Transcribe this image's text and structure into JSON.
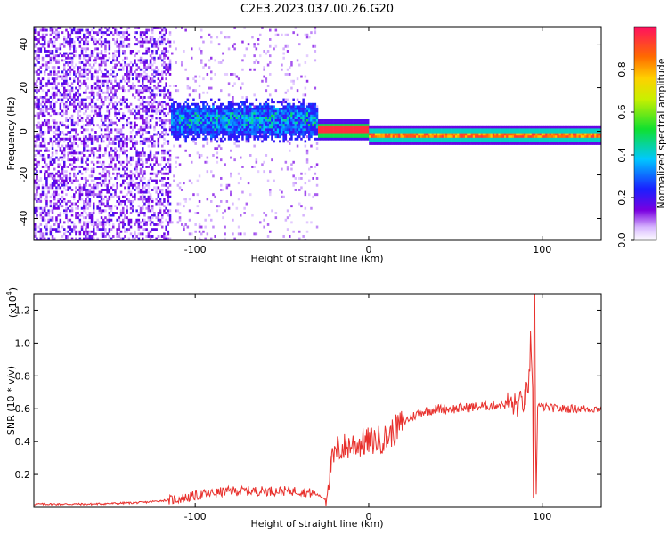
{
  "title": "C2E3.2023.037.00.26.G20",
  "colorbar": {
    "label": "Normalized spectral amplitude",
    "ticks": [
      "0.0",
      "0.2",
      "0.4",
      "0.6",
      "0.8"
    ],
    "range": [
      0,
      1
    ]
  },
  "chart_data": [
    {
      "type": "heatmap",
      "xlabel": "Height of straight line (km)",
      "ylabel": "Frequency (Hz)",
      "xlim": [
        -193,
        134
      ],
      "ylim": [
        -50,
        48
      ],
      "xticks": [
        "-100",
        "0",
        "100"
      ],
      "yticks": [
        "40",
        "20",
        "0",
        "-20",
        "-40"
      ],
      "description_bands": [
        {
          "x_start": -193,
          "x_end": -115,
          "kind": "broadband noise",
          "amplitude_range": [
            0.0,
            0.2
          ]
        },
        {
          "x_start": -115,
          "x_end": -30,
          "kind": "scattered signal near 0 Hz",
          "center_freq": [
            3,
            8
          ],
          "amplitude_range": [
            0.15,
            0.5
          ]
        },
        {
          "x_start": -30,
          "x_end": 0,
          "kind": "strong narrow line",
          "center_freq": [
            0,
            2
          ],
          "amplitude_range": [
            0.8,
            1.0
          ]
        },
        {
          "x_start": 0,
          "x_end": 134,
          "kind": "narrow line",
          "center_freq": [
            -2,
            0
          ],
          "amplitude_range": [
            0.35,
            0.9
          ]
        }
      ]
    },
    {
      "type": "line",
      "xlabel": "Height of straight line (km)",
      "ylabel": "SNR (10 * v/v)",
      "yscale_label": "(x10",
      "yscale_exp": "4",
      "yscale_close": ")",
      "xlim": [
        -193,
        134
      ],
      "ylim": [
        0,
        1.3
      ],
      "xticks": [
        "-100",
        "0",
        "100"
      ],
      "yticks": [
        "0.2",
        "0.4",
        "0.6",
        "0.8",
        "1.0",
        "1.2"
      ],
      "color": "#e8302c",
      "series": [
        {
          "x": [
            -193,
            -160,
            -130,
            -110,
            -95,
            -80,
            -60,
            -40,
            -30,
            -25,
            -22,
            -18,
            -10,
            0,
            10,
            20,
            30,
            40,
            50,
            60,
            70,
            80,
            85,
            90,
            93,
            95,
            96,
            98,
            100,
            110,
            120,
            134
          ],
          "values": [
            0.02,
            0.02,
            0.03,
            0.05,
            0.08,
            0.1,
            0.1,
            0.1,
            0.08,
            0.05,
            0.25,
            0.35,
            0.38,
            0.4,
            0.42,
            0.52,
            0.58,
            0.6,
            0.6,
            0.61,
            0.62,
            0.63,
            0.62,
            0.65,
            0.8,
            0.3,
            0.6,
            0.62,
            0.61,
            0.6,
            0.6,
            0.6
          ]
        }
      ]
    }
  ]
}
